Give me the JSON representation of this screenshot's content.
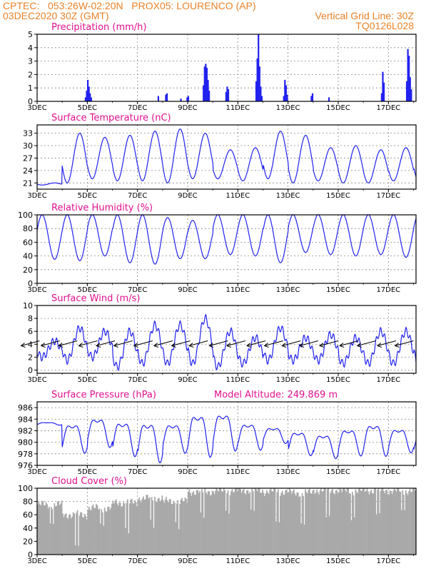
{
  "header": {
    "line1_left": "CPTEC:   053:26W-02:20N   PROX05: LOURENCO (AP)",
    "line2_left": "03DEC2020 30Z (GMT)",
    "line2_right": "Vertical Grid Line: 30Z",
    "line3_right": "TQ0126L028"
  },
  "colors": {
    "header": "#e8822a",
    "title": "#e0108f",
    "series": "#2222ee",
    "cloud": "#a9a9a9",
    "grid": "#888888"
  },
  "chart_data": [
    {
      "type": "bar",
      "title": "Precipitation (mm/h)",
      "ylim": [
        0,
        5
      ],
      "yticks": [
        0,
        1,
        2,
        3,
        4,
        5
      ],
      "xticks": [
        "3DEC",
        "5DEC",
        "7DEC",
        "9DEC",
        "11DEC",
        "13DEC",
        "15DEC",
        "17DEC"
      ],
      "xtick_days": [
        3,
        5,
        7,
        9,
        11,
        13,
        15,
        17
      ],
      "xlim_days": [
        3,
        18.1
      ],
      "bursts": [
        {
          "day": 4.9,
          "values": [
            0.3,
            0.8,
            1.6,
            1.1,
            0.6,
            0.3
          ]
        },
        {
          "day": 7.8,
          "values": [
            0.4
          ]
        },
        {
          "day": 8.1,
          "values": [
            0.5,
            0.6
          ]
        },
        {
          "day": 8.7,
          "values": [
            0.2
          ]
        },
        {
          "day": 8.95,
          "values": [
            0.3,
            0.4
          ]
        },
        {
          "day": 9.6,
          "values": [
            1.2,
            2.6,
            2.8,
            2.5,
            1.6,
            0.8
          ]
        },
        {
          "day": 10.5,
          "values": [
            0.7,
            1.1,
            0.9
          ]
        },
        {
          "day": 11.7,
          "values": [
            1.5,
            3.2,
            5.0,
            2.6,
            1.1,
            0.4
          ]
        },
        {
          "day": 12.8,
          "values": [
            0.4,
            1.6,
            1.2,
            0.5
          ]
        },
        {
          "day": 13.9,
          "values": [
            0.4,
            0.6
          ]
        },
        {
          "day": 14.6,
          "values": [
            0.3
          ]
        },
        {
          "day": 16.7,
          "values": [
            0.6,
            2.2,
            1.4
          ]
        },
        {
          "day": 17.7,
          "values": [
            1.5,
            3.9,
            3.4,
            1.8,
            0.9
          ]
        }
      ]
    },
    {
      "type": "line",
      "title": "Surface Temperature (nC)",
      "ylim": [
        19.5,
        35
      ],
      "yticks": [
        21,
        24,
        27,
        30,
        33
      ],
      "xticks": [
        "3DEC",
        "5DEC",
        "7DEC",
        "9DEC",
        "11DEC",
        "13DEC",
        "15DEC",
        "17DEC"
      ],
      "xtick_days": [
        3,
        5,
        7,
        9,
        11,
        13,
        15,
        17
      ],
      "xlim_days": [
        3,
        18.1
      ],
      "start_day": 3.0,
      "daily_max": [
        21,
        33,
        32,
        32.5,
        33.5,
        34,
        33,
        29,
        29.5,
        33.5,
        32.5,
        29.5,
        30,
        29,
        29.5,
        31.5,
        31
      ],
      "daily_min": [
        20.5,
        21,
        22,
        21.5,
        21.5,
        21,
        22,
        22,
        21.5,
        22,
        21,
        21.5,
        21,
        21,
        21.5,
        21.5,
        22
      ]
    },
    {
      "type": "line",
      "title": "Relative Humidity (%)",
      "ylim": [
        0,
        100
      ],
      "yticks": [
        0,
        20,
        40,
        60,
        80,
        100
      ],
      "xticks": [
        "3DEC",
        "5DEC",
        "7DEC",
        "9DEC",
        "11DEC",
        "13DEC",
        "15DEC",
        "17DEC"
      ],
      "xtick_days": [
        3,
        5,
        7,
        9,
        11,
        13,
        15,
        17
      ],
      "xlim_days": [
        3,
        18.1
      ],
      "start_day": 3.0,
      "daily_max": [
        100,
        100,
        100,
        100,
        100,
        96,
        92,
        100,
        100,
        100,
        100,
        100,
        100,
        100,
        100,
        100,
        92
      ],
      "daily_min": [
        35,
        33,
        40,
        30,
        28,
        36,
        36,
        42,
        40,
        30,
        45,
        42,
        40,
        42,
        38,
        42,
        55
      ]
    },
    {
      "type": "line",
      "title": "Surface Wind (m/s)",
      "ylim": [
        -0.5,
        10
      ],
      "yticks": [
        0,
        2,
        4,
        6,
        8,
        10
      ],
      "xticks": [
        "3DEC",
        "5DEC",
        "7DEC",
        "9DEC",
        "11DEC",
        "13DEC",
        "15DEC",
        "17DEC"
      ],
      "xtick_days": [
        3,
        5,
        7,
        9,
        11,
        13,
        15,
        17
      ],
      "xlim_days": [
        3,
        18.1
      ],
      "start_day": 3.0,
      "daily_max": [
        4.5,
        6.5,
        6,
        6,
        7,
        7,
        8,
        6,
        5,
        6.5,
        5,
        5.5,
        5,
        6,
        6,
        7,
        7
      ],
      "daily_min": [
        2,
        1.5,
        2,
        0.5,
        1,
        1,
        1,
        0.5,
        1,
        1.5,
        1.5,
        1.5,
        1,
        1,
        1,
        1,
        2.5
      ],
      "wind_vectors_days": [
        3.1,
        3.9,
        4.6,
        5.4,
        6.1,
        6.8,
        7.6,
        8.4,
        9.1,
        9.8,
        10.6,
        11.3,
        12.1,
        12.8,
        13.5,
        14.2,
        15.0,
        15.8,
        16.5,
        17.3,
        18.0
      ]
    },
    {
      "type": "line",
      "title": "Surface Pressure (hPa)",
      "annotation": "Model Altitude: 249.869  m",
      "ylim": [
        976,
        987
      ],
      "yticks": [
        976,
        978,
        980,
        982,
        984,
        986
      ],
      "xticks": [
        "3DEC",
        "5DEC",
        "7DEC",
        "9DEC",
        "11DEC",
        "13DEC",
        "15DEC",
        "17DEC"
      ],
      "xtick_days": [
        3,
        5,
        7,
        9,
        11,
        13,
        15,
        17
      ],
      "xlim_days": [
        3,
        18.1
      ],
      "start_day": 3.0,
      "peaks": [
        983.5,
        984,
        985,
        984.5,
        984.5,
        984,
        986,
        986,
        984,
        983,
        982.5,
        982,
        983,
        984,
        983,
        982.5
      ],
      "troughs": [
        983,
        978.5,
        979.5,
        978,
        977,
        978.5,
        978,
        979,
        979,
        980,
        978,
        977.5,
        978,
        978,
        978.5,
        978
      ]
    },
    {
      "type": "bar",
      "title": "Cloud Cover (%)",
      "ylim": [
        0,
        100
      ],
      "yticks": [
        0,
        20,
        40,
        60,
        80,
        100
      ],
      "xticks": [
        "3DEC",
        "5DEC",
        "7DEC",
        "9DEC",
        "11DEC",
        "13DEC",
        "15DEC",
        "17DEC"
      ],
      "xtick_days": [
        3,
        5,
        7,
        9,
        11,
        13,
        15,
        17
      ],
      "xlim_days": [
        3,
        18.1
      ],
      "start_day": 3.0,
      "daily_mean": [
        75,
        60,
        70,
        78,
        85,
        80,
        95,
        96,
        97,
        95,
        93,
        97,
        96,
        97,
        96,
        97
      ],
      "daily_dip": [
        45,
        10,
        40,
        30,
        40,
        35,
        50,
        55,
        60,
        45,
        45,
        55,
        50,
        55,
        60,
        60
      ]
    }
  ]
}
